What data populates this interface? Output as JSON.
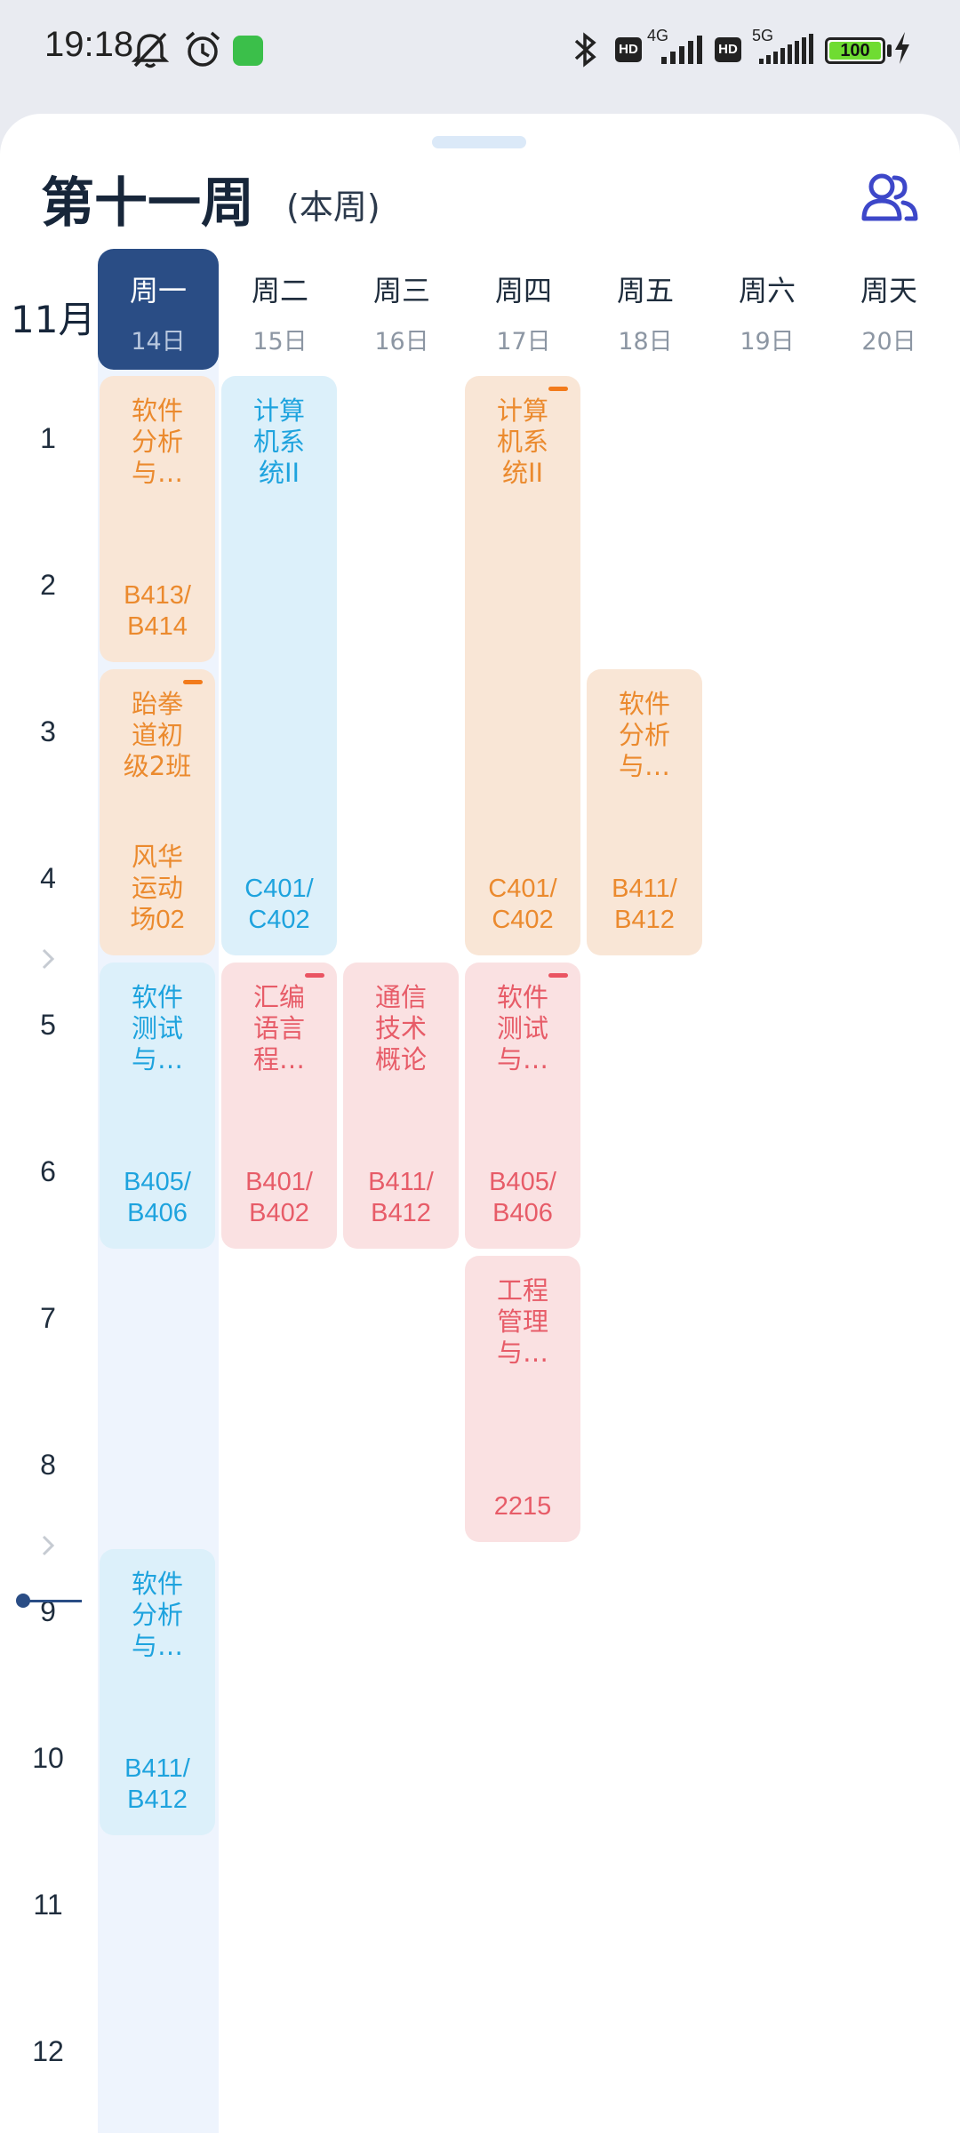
{
  "status_bar": {
    "time": "19:18",
    "icons": [
      "mute-icon",
      "alarm-icon",
      "app-badge-icon",
      "bluetooth-icon",
      "hd-icon",
      "signal-4g-icon",
      "hd-icon",
      "signal-5g-icon",
      "charging-icon"
    ],
    "net1": "4G",
    "net2": "5G",
    "hd": "HD",
    "battery": "100"
  },
  "header": {
    "title": "第十一周",
    "subtitle": "(本周)",
    "action_icon": "people-icon",
    "accent": "#3d47c9"
  },
  "calendar": {
    "month": "11月",
    "days": [
      {
        "name": "周一",
        "date": "14日"
      },
      {
        "name": "周二",
        "date": "15日"
      },
      {
        "name": "周三",
        "date": "16日"
      },
      {
        "name": "周四",
        "date": "17日"
      },
      {
        "name": "周五",
        "date": "18日"
      },
      {
        "name": "周六",
        "date": "19日"
      },
      {
        "name": "周天",
        "date": "20日"
      }
    ],
    "periods": [
      "1",
      "2",
      "3",
      "4",
      "5",
      "6",
      "7",
      "8",
      "9",
      "10",
      "11",
      "12"
    ],
    "courses": [
      {
        "name": "软件\n分析\n与…",
        "room": "B413/\nB414",
        "day": 1,
        "start": 1,
        "end": 2,
        "color": "orange",
        "flag": false
      },
      {
        "name": "跆拳\n道初\n级2班",
        "room": "风华\n运动\n场02",
        "day": 1,
        "start": 3,
        "end": 4,
        "color": "orange",
        "flag": true
      },
      {
        "name": "软件\n测试\n与…",
        "room": "B405/\nB406",
        "day": 1,
        "start": 5,
        "end": 6,
        "color": "blue",
        "flag": false
      },
      {
        "name": "软件\n分析\n与…",
        "room": "B411/\nB412",
        "day": 1,
        "start": 9,
        "end": 10,
        "color": "blue",
        "flag": false
      },
      {
        "name": "计算\n机系\n统II",
        "room": "C401/\nC402",
        "day": 2,
        "start": 1,
        "end": 4,
        "color": "blue",
        "flag": false
      },
      {
        "name": "汇编\n语言\n程…",
        "room": "B401/\nB402",
        "day": 2,
        "start": 5,
        "end": 6,
        "color": "red",
        "flag": true
      },
      {
        "name": "通信\n技术\n概论",
        "room": "B411/\nB412",
        "day": 3,
        "start": 5,
        "end": 6,
        "color": "red",
        "flag": false
      },
      {
        "name": "计算\n机系\n统II",
        "room": "C401/\nC402",
        "day": 4,
        "start": 1,
        "end": 4,
        "color": "orange",
        "flag": true
      },
      {
        "name": "软件\n测试\n与…",
        "room": "B405/\nB406",
        "day": 4,
        "start": 5,
        "end": 6,
        "color": "red",
        "flag": true
      },
      {
        "name": "工程\n管理\n与…",
        "room": "2215",
        "day": 4,
        "start": 7,
        "end": 8,
        "color": "red",
        "flag": false
      },
      {
        "name": "软件\n分析\n与…",
        "room": "B411/\nB412",
        "day": 5,
        "start": 3,
        "end": 4,
        "color": "orange",
        "flag": false
      }
    ]
  }
}
